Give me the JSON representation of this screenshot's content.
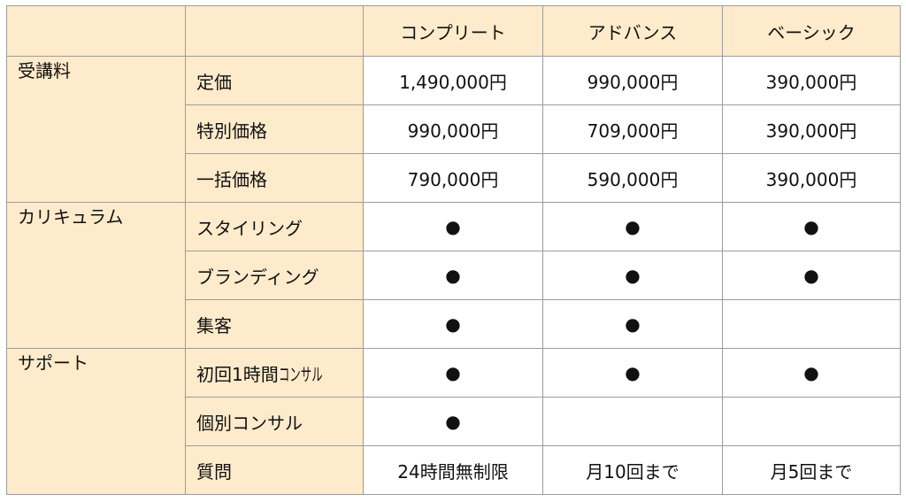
{
  "plans": [
    "コンプリート",
    "アドバンス",
    "ベーシック"
  ],
  "sections": [
    {
      "category": "受講料",
      "rows": [
        {
          "label": "定価",
          "values": [
            "1,490,000円",
            "990,000円",
            "390,000円"
          ]
        },
        {
          "label": "特別価格",
          "values": [
            "990,000円",
            "709,000円",
            "390,000円"
          ]
        },
        {
          "label": "一括価格",
          "values": [
            "790,000円",
            "590,000円",
            "390,000円"
          ]
        }
      ]
    },
    {
      "category": "カリキュラム",
      "rows": [
        {
          "label": "スタイリング",
          "values": [
            "●",
            "●",
            "●"
          ]
        },
        {
          "label": "ブランディング",
          "values": [
            "●",
            "●",
            "●"
          ]
        },
        {
          "label": "集客",
          "values": [
            "●",
            "●",
            ""
          ]
        }
      ]
    },
    {
      "category": "サポート",
      "rows": [
        {
          "label_main": "初回1時間",
          "label_small": "コンサル",
          "values": [
            "●",
            "●",
            "●"
          ]
        },
        {
          "label": "個別コンサル",
          "values": [
            "●",
            "",
            ""
          ]
        },
        {
          "label": "質問",
          "values": [
            "24時間無制限",
            "月10回まで",
            "月5回まで"
          ]
        }
      ]
    }
  ]
}
